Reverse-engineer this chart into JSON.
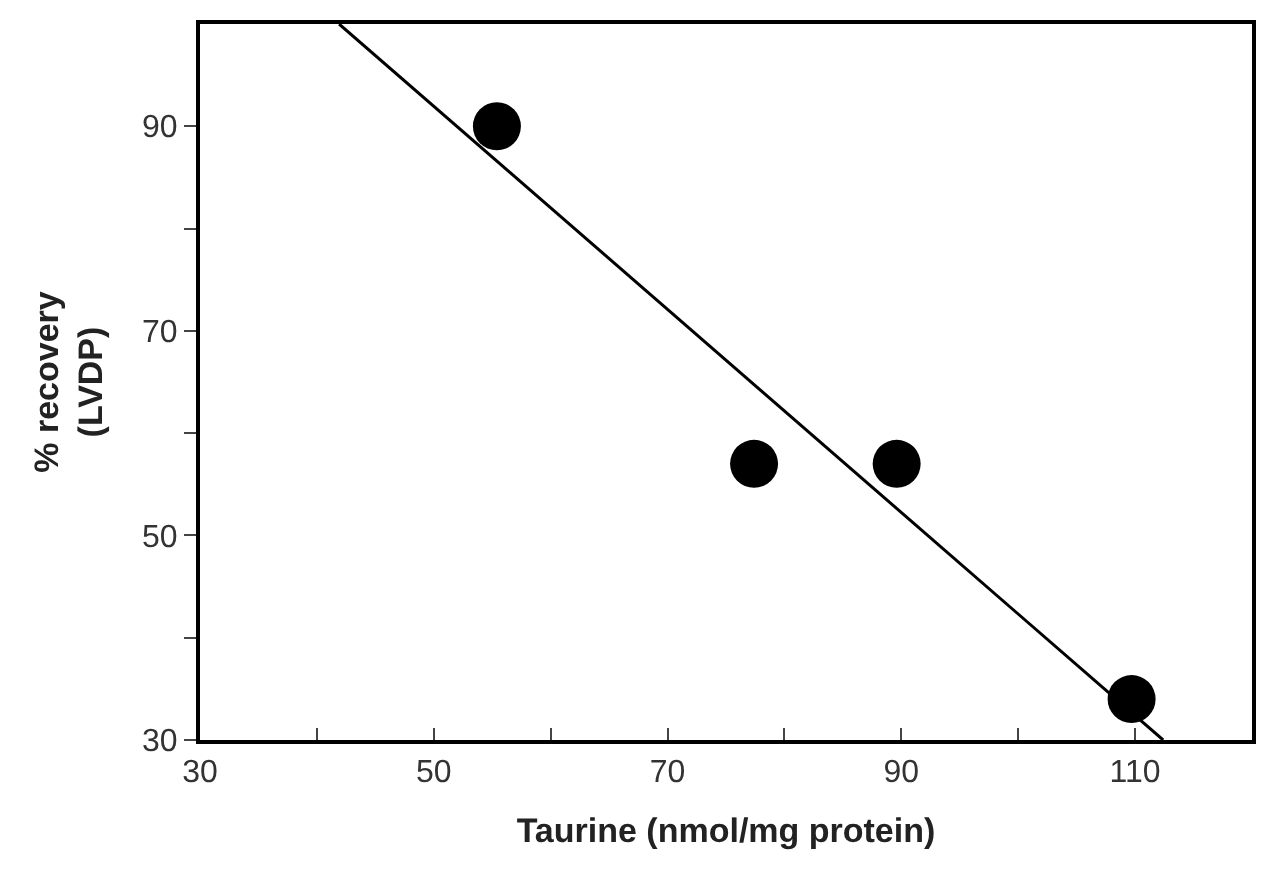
{
  "chart_data": {
    "type": "scatter",
    "xlabel": "Taurine (nmol/mg protein)",
    "ylabel": "% recovery\n(LVDP)",
    "x": [
      55.4,
      77.4,
      89.6,
      109.7
    ],
    "series": [
      {
        "color": "#000000",
        "marker": "circle",
        "values": [
          90,
          57,
          57,
          34
        ]
      },
      {
        "type": "line",
        "color": "#000000",
        "x": [
          41.9,
          112.4
        ],
        "values": [
          100,
          30
        ],
        "marker": "none",
        "line_style": "solid"
      }
    ],
    "xlim": [
      30,
      120
    ],
    "ylim": [
      30,
      100
    ],
    "xticks": [
      30,
      {
        "value": 40,
        "label": null
      },
      50,
      {
        "value": 60,
        "label": null
      },
      70,
      {
        "value": 80,
        "label": null
      },
      90,
      {
        "value": 100,
        "label": null
      },
      110
    ],
    "yticks": [
      30,
      {
        "value": 40,
        "label": null
      },
      50,
      {
        "value": 60,
        "label": null
      },
      70,
      {
        "value": 80,
        "label": null
      },
      90
    ],
    "tick_labels": true
  }
}
